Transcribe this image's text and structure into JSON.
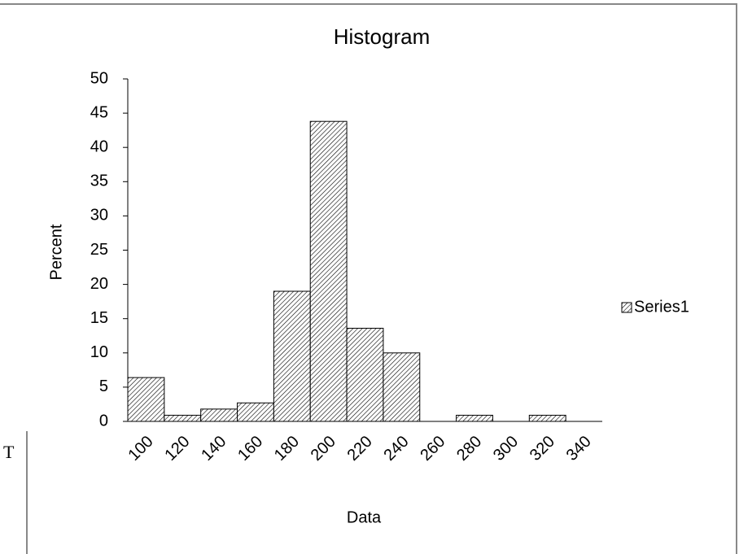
{
  "chart_data": {
    "type": "bar",
    "title": "Histogram",
    "x_label": "Data",
    "y_label": "Percent",
    "categories": [
      "100",
      "120",
      "140",
      "160",
      "180",
      "200",
      "220",
      "240",
      "260",
      "280",
      "300",
      "320",
      "340"
    ],
    "series": [
      {
        "name": "Series1",
        "color": "#000000",
        "values": [
          6.4,
          0.9,
          1.8,
          2.7,
          19,
          43.8,
          13.6,
          10,
          0,
          0.9,
          0,
          0.9,
          0
        ]
      }
    ],
    "ylim": [
      0,
      50
    ],
    "yticks": [
      0,
      5,
      10,
      15,
      20,
      25,
      30,
      35,
      40,
      45,
      50
    ],
    "grid": false,
    "legend": "right",
    "stray_text": "T"
  }
}
